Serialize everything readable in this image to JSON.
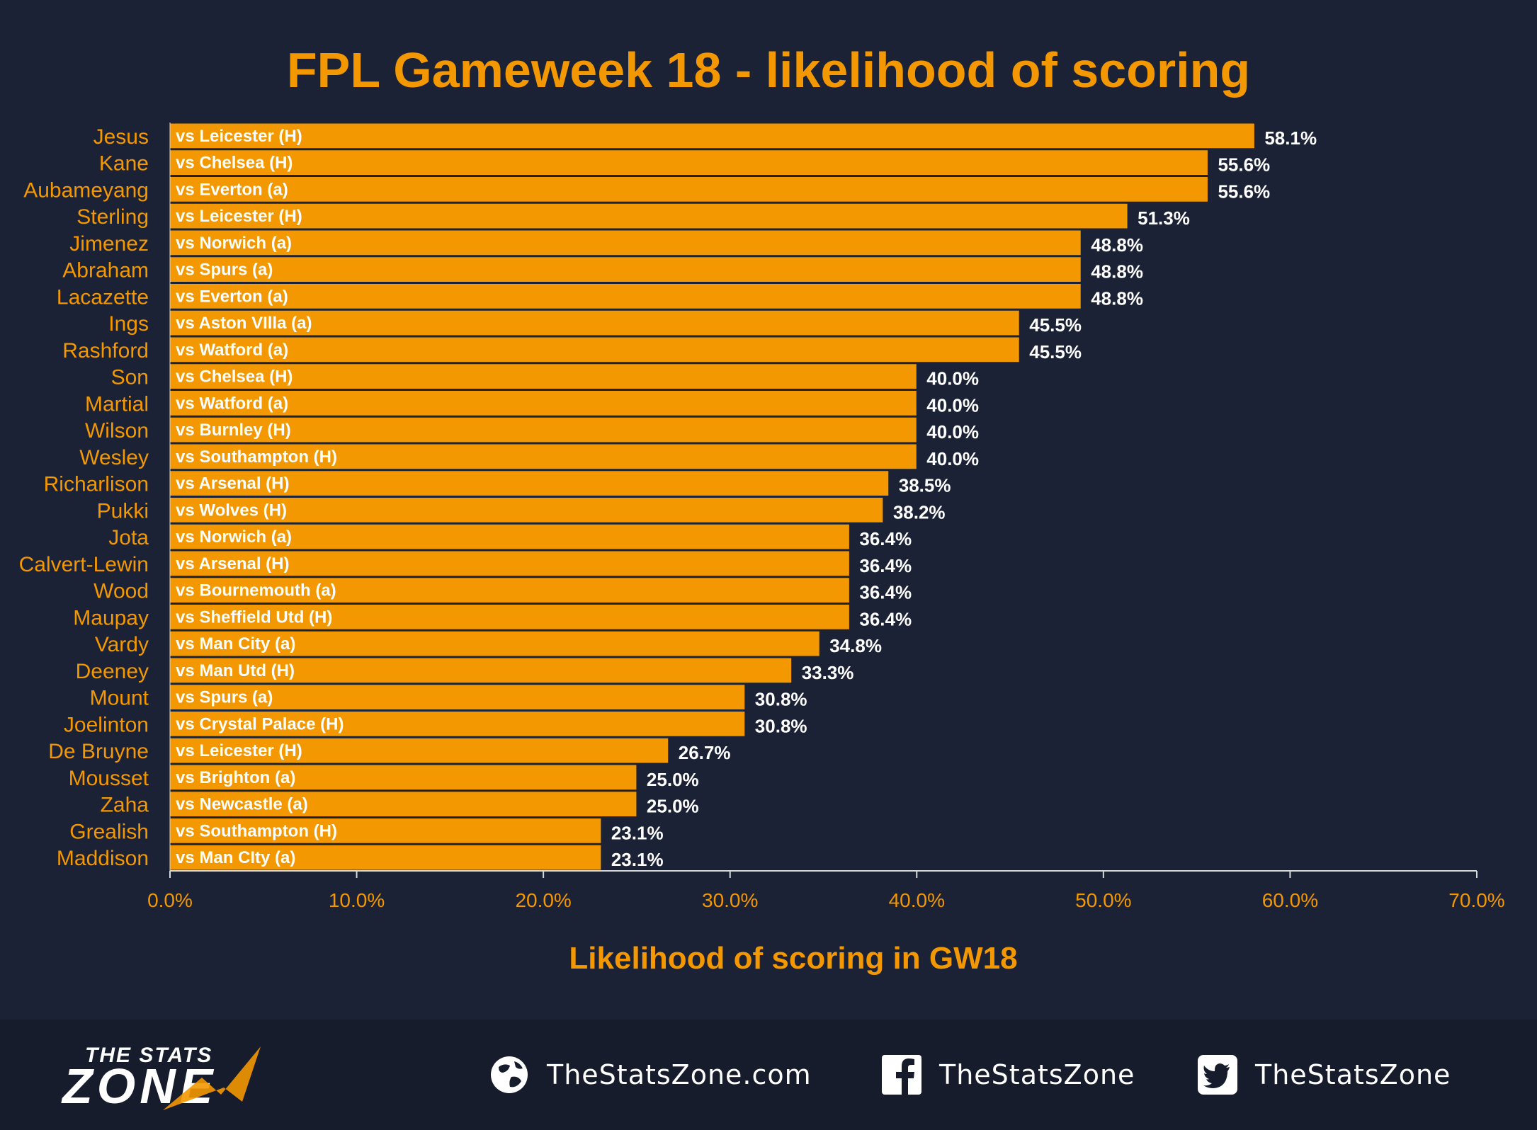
{
  "colors": {
    "background": "#1b2236",
    "footer_background": "#161c2c",
    "bar": "#f39800",
    "bar_edge": "#1b2236",
    "title": "#f39800",
    "player_label": "#f39800",
    "fixture_label": "#ffffff",
    "value_label": "#ffffff",
    "axis": "#d8d8d8",
    "tick_label": "#f39800"
  },
  "chart_data": {
    "type": "bar",
    "orientation": "horizontal",
    "title": "FPL Gameweek 18 - likelihood of scoring",
    "xlabel": "Likelihood of scoring in GW18",
    "ylabel": "",
    "xlim": [
      0,
      70
    ],
    "x_ticks": [
      "0.0%",
      "10.0%",
      "20.0%",
      "30.0%",
      "40.0%",
      "50.0%",
      "60.0%",
      "70.0%"
    ],
    "grid": false,
    "legend": "none",
    "categories": [
      "Jesus",
      "Kane",
      "Aubameyang",
      "Sterling",
      "Jimenez",
      "Abraham",
      "Lacazette",
      "Ings",
      "Rashford",
      "Son",
      "Martial",
      "Wilson",
      "Wesley",
      "Richarlison",
      "Pukki",
      "Jota",
      "Calvert-Lewin",
      "Wood",
      "Maupay",
      "Vardy",
      "Deeney",
      "Mount",
      "Joelinton",
      "De Bruyne",
      "Mousset",
      "Zaha",
      "Grealish",
      "Maddison"
    ],
    "fixtures": [
      "vs Leicester (H)",
      "vs Chelsea (H)",
      "vs Everton (a)",
      "vs Leicester (H)",
      "vs Norwich (a)",
      "vs Spurs (a)",
      "vs Everton (a)",
      "vs Aston VIlla (a)",
      "vs Watford (a)",
      "vs Chelsea (H)",
      "vs Watford (a)",
      "vs Burnley (H)",
      "vs Southampton (H)",
      "vs Arsenal (H)",
      "vs Wolves (H)",
      "vs Norwich (a)",
      "vs Arsenal (H)",
      "vs Bournemouth (a)",
      "vs Sheffield Utd (H)",
      "vs Man City (a)",
      "vs Man Utd (H)",
      "vs Spurs (a)",
      "vs Crystal Palace (H)",
      "vs Leicester (H)",
      "vs Brighton (a)",
      "vs Newcastle (a)",
      "vs Southampton (H)",
      "vs Man CIty (a)"
    ],
    "values": [
      58.1,
      55.6,
      55.6,
      51.3,
      48.8,
      48.8,
      48.8,
      45.5,
      45.5,
      40.0,
      40.0,
      40.0,
      40.0,
      38.5,
      38.2,
      36.4,
      36.4,
      36.4,
      36.4,
      34.8,
      33.3,
      30.8,
      30.8,
      26.7,
      25.0,
      25.0,
      23.1,
      23.1
    ],
    "value_labels": [
      "58.1%",
      "55.6%",
      "55.6%",
      "51.3%",
      "48.8%",
      "48.8%",
      "48.8%",
      "45.5%",
      "45.5%",
      "40.0%",
      "40.0%",
      "40.0%",
      "40.0%",
      "38.5%",
      "38.2%",
      "36.4%",
      "36.4%",
      "36.4%",
      "36.4%",
      "34.8%",
      "33.3%",
      "30.8%",
      "30.8%",
      "26.7%",
      "25.0%",
      "25.0%",
      "23.1%",
      "23.1%"
    ]
  },
  "footer": {
    "logo_line1": "THE STATS",
    "logo_line2": "ZONE",
    "website": "TheStatsZone.com",
    "facebook": "TheStatsZone",
    "twitter": "TheStatsZone",
    "website_icon": "globe-icon",
    "facebook_icon": "facebook-icon",
    "twitter_icon": "twitter-icon"
  }
}
